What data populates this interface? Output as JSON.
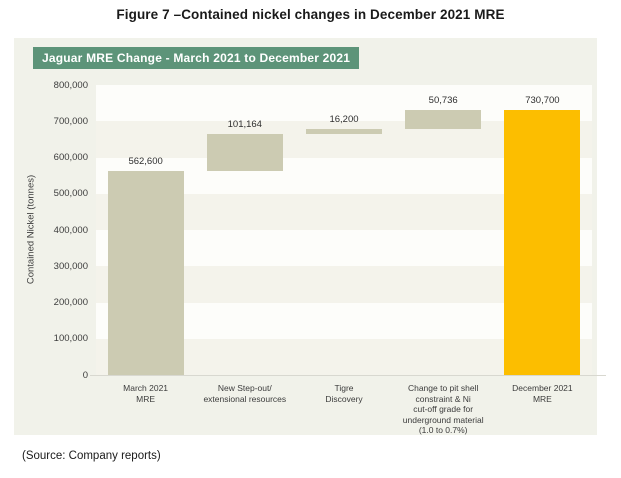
{
  "page": {
    "figure_title": "Figure 7 –Contained nickel changes in December 2021 MRE",
    "source_note": "(Source: Company reports)"
  },
  "chart_data": {
    "type": "bar",
    "subtype": "waterfall",
    "title": "Jaguar MRE Change - March 2021 to December 2021",
    "ylabel": "Contained Nickel (tonnes)",
    "xlabel": "",
    "ylim": [
      0,
      800000
    ],
    "ytick_interval": 100000,
    "ytick_labels": [
      "0",
      "100,000",
      "200,000",
      "300,000",
      "400,000",
      "500,000",
      "600,000",
      "700,000",
      "800,000"
    ],
    "legend": "none",
    "grid": "alternating horizontal bands, no gridlines",
    "categories": [
      "March 2021 MRE",
      "New Step-out/ extensional resources",
      "Tigre Discovery",
      "Change to pit shell constraint & Ni cut-off grade for underground material (1.0 to 0.7%)",
      "December 2021 MRE"
    ],
    "bars": [
      {
        "name": "march-2021-mre",
        "category_lines": [
          "March 2021",
          "MRE"
        ],
        "start": 0,
        "end": 562600,
        "value": 562600,
        "value_label": "562,600",
        "color_key": "bar_default"
      },
      {
        "name": "new-step-out-extensional-resources",
        "category_lines": [
          "New Step-out/",
          "extensional resources"
        ],
        "start": 562600,
        "end": 663764,
        "value": 101164,
        "value_label": "101,164",
        "color_key": "bar_default"
      },
      {
        "name": "tigre-discovery",
        "category_lines": [
          "Tigre",
          "Discovery"
        ],
        "start": 663764,
        "end": 679964,
        "value": 16200,
        "value_label": "16,200",
        "color_key": "bar_default"
      },
      {
        "name": "pit-shell-constraint-cutoff-grade",
        "category_lines": [
          "Change to pit shell",
          "constraint & Ni",
          "cut-off grade for",
          "underground material",
          "(1.0 to 0.7%)"
        ],
        "start": 679964,
        "end": 730700,
        "value": 50736,
        "value_label": "50,736",
        "color_key": "bar_highlight_end"
      },
      {
        "name": "december-2021-mre",
        "category_lines": [
          "December 2021",
          "MRE"
        ],
        "start": 0,
        "end": 730700,
        "value": 730700,
        "value_label": "730,700",
        "color_key": "bar_highlight"
      }
    ],
    "colors": {
      "header_bg": "#5d9479",
      "header_text": "#ffffff",
      "panel_bg": "#f1f2ea",
      "band_light": "#fdfdfa",
      "band_dark": "#f4f3eb",
      "bar_default": "#cccbb2",
      "bar_highlight_end": "#cccbb2",
      "bar_highlight": "#fcbe00",
      "baseline": "#d8d8d0",
      "text": "#3c3c3c"
    }
  }
}
